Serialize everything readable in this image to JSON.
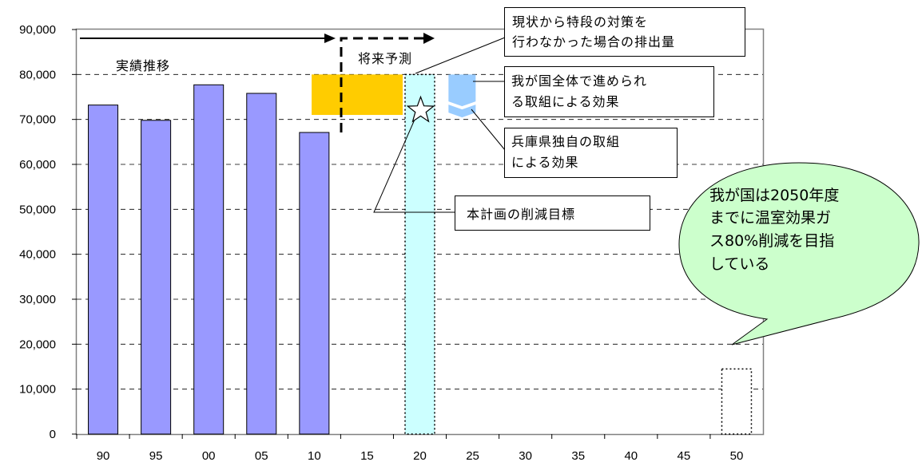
{
  "chart_data": {
    "type": "bar",
    "categories": [
      "90",
      "95",
      "00",
      "05",
      "10",
      "15",
      "20",
      "25",
      "30",
      "35",
      "40",
      "45",
      "50"
    ],
    "series": [
      {
        "values": [
          73200,
          69800,
          77700,
          75800,
          67100,
          null,
          null,
          null,
          null,
          null,
          null,
          null,
          null
        ]
      }
    ],
    "ylim": [
      0,
      90000
    ],
    "yticks": [
      "0",
      "10,000",
      "20,000",
      "30,000",
      "40,000",
      "50,000",
      "60,000",
      "70,000",
      "80,000",
      "90,000"
    ],
    "grid": "dashed horizontal",
    "forecast_2020_box": {
      "category": "20",
      "top": 80000,
      "bottom": 0
    },
    "no_measures_range": {
      "from_category": "10",
      "to_category": "20",
      "top": 80000,
      "bottom": 71000
    },
    "national_effect": {
      "category": "25",
      "top": 80000,
      "bottom": 74000
    },
    "target_2020": {
      "category": "20",
      "value": 72000
    },
    "goal_2050_box": {
      "category": "50",
      "top": 14500,
      "bottom": 0
    }
  },
  "annotations": {
    "actual_trend": "実績推移",
    "future_forecast": "将来予測",
    "no_measures_line1": "現状から特段の対策を",
    "no_measures_line2": "行わなかった場合の排出量",
    "national_line1": "我が国全体で進められ",
    "national_line2": "る取組による効果",
    "hyogo_line1": "兵庫県独自の取組",
    "hyogo_line2": "による効果",
    "target_label": "本計画の削減目標",
    "bubble_line1": "我が国は2050年度",
    "bubble_line2": "までに温室効果ガ",
    "bubble_line3": "ス80%削減を目指",
    "bubble_line4": "している"
  },
  "colors": {
    "bar": "#9999ff",
    "no_measures": "#ffcc00",
    "forecast_box": "#ccffff",
    "national": "#99ccff",
    "hyogo": "#ffffff",
    "bubble": "#ccffcc",
    "grid": "#000000"
  }
}
